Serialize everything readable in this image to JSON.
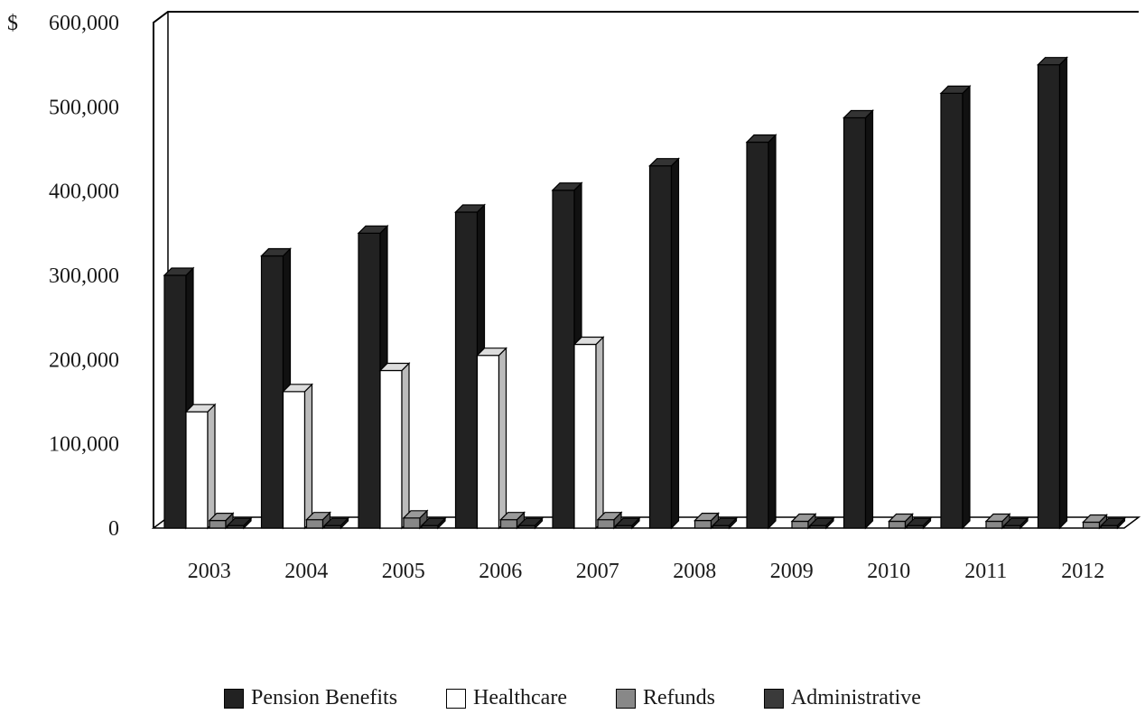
{
  "chart_data": {
    "type": "bar",
    "title": "",
    "xlabel": "",
    "ylabel": "",
    "y_unit_label": "$",
    "ylim": [
      0,
      600000
    ],
    "y_ticks": [
      0,
      100000,
      200000,
      300000,
      400000,
      500000,
      600000
    ],
    "y_tick_labels": [
      "0",
      "100,000",
      "200,000",
      "300,000",
      "400,000",
      "500,000",
      "600,000"
    ],
    "categories": [
      "2003",
      "2004",
      "2005",
      "2006",
      "2007",
      "2008",
      "2009",
      "2010",
      "2011",
      "2012"
    ],
    "legend_position": "bottom",
    "grid": false,
    "series": [
      {
        "name": "Pension Benefits",
        "color": "#222222",
        "values": [
          300000,
          323000,
          350000,
          375000,
          401000,
          430000,
          458000,
          487000,
          516000,
          550000
        ]
      },
      {
        "name": "Healthcare",
        "color": "#ffffff",
        "values": [
          138000,
          162000,
          187000,
          205000,
          218000,
          0,
          0,
          0,
          0,
          0
        ]
      },
      {
        "name": "Refunds",
        "color": "#888888",
        "values": [
          9000,
          10000,
          12000,
          10000,
          10000,
          9000,
          8000,
          8000,
          8000,
          7000
        ]
      },
      {
        "name": "Administrative",
        "color": "#3a3a3a",
        "values": [
          3000,
          3000,
          3000,
          3000,
          3000,
          3000,
          3000,
          3000,
          3000,
          3000
        ]
      }
    ]
  }
}
